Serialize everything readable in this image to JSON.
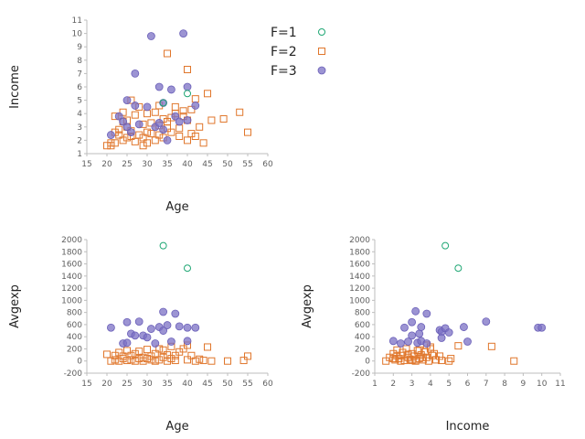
{
  "legend": {
    "entries": [
      {
        "label": "F=1",
        "marker": "circle-open",
        "color": "#1fa774"
      },
      {
        "label": "F=2",
        "marker": "square-open",
        "color": "#e0762b"
      },
      {
        "label": "F=3",
        "marker": "circle-filled",
        "color": "#7b70c4"
      }
    ]
  },
  "chart_data": [
    {
      "type": "scatter",
      "xlabel": "Age",
      "ylabel": "Income",
      "xlim": [
        15,
        60
      ],
      "ylim": [
        1,
        11
      ],
      "xticks": [
        15,
        20,
        25,
        30,
        35,
        40,
        45,
        50,
        55,
        60
      ],
      "yticks": [
        1,
        2,
        3,
        4,
        5,
        6,
        7,
        8,
        9,
        10,
        11
      ],
      "grid": false,
      "series": [
        {
          "name": "F=1",
          "x": [
            34,
            40
          ],
          "y": [
            4.8,
            5.5
          ]
        },
        {
          "name": "F=2",
          "x": [
            20,
            21,
            21,
            22,
            22,
            22,
            23,
            23,
            24,
            24,
            24,
            25,
            25,
            25,
            26,
            26,
            26,
            27,
            27,
            28,
            28,
            29,
            29,
            29,
            30,
            30,
            30,
            31,
            31,
            32,
            32,
            33,
            33,
            33,
            34,
            34,
            35,
            35,
            35,
            36,
            36,
            37,
            37,
            38,
            38,
            39,
            39,
            40,
            40,
            40,
            41,
            41,
            42,
            42,
            43,
            44,
            45,
            46,
            49,
            53,
            55
          ],
          "y": [
            1.6,
            1.6,
            1.8,
            1.8,
            2.6,
            3.8,
            2.4,
            2.8,
            2.0,
            3.4,
            4.1,
            2.2,
            3.0,
            3.5,
            2.3,
            2.7,
            5.0,
            1.9,
            3.9,
            2.4,
            4.5,
            1.6,
            2.2,
            3.2,
            2.6,
            4.0,
            1.8,
            3.3,
            2.5,
            4.1,
            2.0,
            2.4,
            3.1,
            4.6,
            2.2,
            3.6,
            2.9,
            3.4,
            8.5,
            3.7,
            2.6,
            4.0,
            4.5,
            2.3,
            2.9,
            3.8,
            4.2,
            7.3,
            3.5,
            2.0,
            4.3,
            2.5,
            2.3,
            5.1,
            3.0,
            1.8,
            5.5,
            3.5,
            3.6,
            4.1,
            2.6
          ]
        },
        {
          "name": "F=3",
          "x": [
            21,
            23,
            24,
            25,
            25,
            26,
            27,
            27,
            28,
            30,
            31,
            32,
            33,
            33,
            34,
            34,
            35,
            36,
            37,
            38,
            39,
            40,
            40,
            42
          ],
          "y": [
            2.4,
            3.8,
            3.4,
            5.0,
            3.0,
            2.6,
            7.0,
            4.6,
            3.2,
            4.5,
            9.8,
            3.0,
            6.0,
            3.3,
            2.8,
            4.8,
            2.0,
            5.8,
            3.8,
            3.4,
            10.0,
            6.0,
            3.5,
            4.6
          ]
        }
      ]
    },
    {
      "type": "scatter",
      "xlabel": "Age",
      "ylabel": "Avgexp",
      "xlim": [
        15,
        60
      ],
      "ylim": [
        -200,
        2000
      ],
      "xticks": [
        15,
        20,
        25,
        30,
        35,
        40,
        45,
        50,
        55,
        60
      ],
      "yticks": [
        -200,
        0,
        200,
        400,
        600,
        800,
        1000,
        1200,
        1400,
        1600,
        1800,
        2000
      ],
      "grid": false,
      "series": [
        {
          "name": "F=1",
          "x": [
            34,
            40
          ],
          "y": [
            1900,
            1530
          ]
        },
        {
          "name": "F=2",
          "x": [
            20,
            21,
            22,
            22,
            23,
            23,
            24,
            24,
            25,
            25,
            26,
            26,
            27,
            27,
            28,
            28,
            29,
            29,
            30,
            30,
            31,
            31,
            32,
            32,
            33,
            33,
            34,
            34,
            35,
            35,
            36,
            36,
            37,
            37,
            38,
            39,
            40,
            40,
            41,
            42,
            43,
            44,
            45,
            46,
            50,
            54,
            55
          ],
          "y": [
            110,
            0,
            90,
            20,
            140,
            0,
            80,
            40,
            170,
            10,
            90,
            20,
            120,
            0,
            160,
            40,
            60,
            0,
            190,
            40,
            80,
            20,
            120,
            0,
            200,
            20,
            60,
            180,
            100,
            0,
            240,
            40,
            90,
            10,
            150,
            200,
            20,
            260,
            90,
            0,
            30,
            10,
            230,
            0,
            0,
            10,
            80
          ]
        },
        {
          "name": "F=3",
          "x": [
            21,
            24,
            25,
            25,
            26,
            27,
            28,
            29,
            30,
            31,
            32,
            33,
            34,
            34,
            35,
            36,
            37,
            38,
            40,
            40,
            42
          ],
          "y": [
            550,
            290,
            640,
            300,
            450,
            420,
            650,
            420,
            390,
            530,
            290,
            560,
            810,
            500,
            590,
            320,
            780,
            570,
            550,
            330,
            550
          ]
        }
      ]
    },
    {
      "type": "scatter",
      "xlabel": "Income",
      "ylabel": "Avgexp",
      "xlim": [
        1,
        11
      ],
      "ylim": [
        -200,
        2000
      ],
      "xticks": [
        1,
        2,
        3,
        4,
        5,
        6,
        7,
        8,
        9,
        10,
        11
      ],
      "yticks": [
        -200,
        0,
        200,
        400,
        600,
        800,
        1000,
        1200,
        1400,
        1600,
        1800,
        2000
      ],
      "grid": false,
      "series": [
        {
          "name": "F=1",
          "x": [
            4.8,
            5.5
          ],
          "y": [
            1900,
            1530
          ]
        },
        {
          "name": "F=2",
          "x": [
            1.6,
            1.8,
            2.0,
            2.1,
            2.2,
            2.3,
            2.4,
            2.5,
            2.6,
            2.7,
            2.8,
            2.9,
            3.0,
            3.1,
            3.2,
            3.3,
            3.4,
            3.5,
            3.6,
            3.7,
            3.8,
            3.9,
            4.0,
            4.1,
            4.2,
            4.3,
            4.5,
            4.6,
            5.0,
            5.1,
            5.5,
            7.3,
            8.5,
            2.0,
            2.4,
            2.8,
            3.2,
            3.6,
            4.0,
            2.2,
            3.0,
            3.4,
            3.8
          ],
          "y": [
            0,
            60,
            120,
            20,
            180,
            40,
            90,
            140,
            10,
            200,
            60,
            30,
            120,
            80,
            0,
            170,
            40,
            100,
            20,
            150,
            60,
            0,
            230,
            90,
            120,
            20,
            80,
            10,
            0,
            40,
            250,
            240,
            0,
            40,
            0,
            110,
            20,
            60,
            200,
            90,
            10,
            180,
            260
          ]
        },
        {
          "name": "F=3",
          "x": [
            2.0,
            2.4,
            2.6,
            2.8,
            3.0,
            3.0,
            3.2,
            3.3,
            3.4,
            3.5,
            3.5,
            3.8,
            3.8,
            4.5,
            4.6,
            4.6,
            4.8,
            5.0,
            5.8,
            6.0,
            7.0,
            9.8,
            10.0
          ],
          "y": [
            330,
            290,
            550,
            320,
            640,
            420,
            820,
            300,
            450,
            560,
            330,
            780,
            290,
            510,
            480,
            380,
            540,
            470,
            560,
            320,
            650,
            550,
            550
          ]
        }
      ]
    }
  ]
}
